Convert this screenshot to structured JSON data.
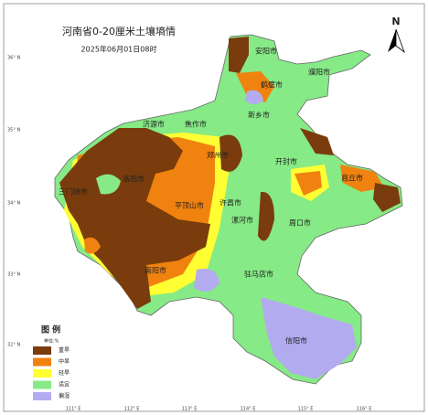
{
  "header": {
    "title": "河南省0-20厘米土壤墒情",
    "subtitle": "2025年06月01日08时"
  },
  "north": "N",
  "lat_labels": [
    "36° N",
    "35° N",
    "34° N",
    "33° N",
    "32° N"
  ],
  "lon_labels": [
    "111° E",
    "112° E",
    "113° E",
    "114° E",
    "115° E",
    "116° E"
  ],
  "cities": [
    "安阳市",
    "濮阳市",
    "鹤壁市",
    "新乡市",
    "济源市",
    "焦作市",
    "郑州市",
    "开封市",
    "商丘市",
    "洛阳市",
    "三门峡市",
    "许昌市",
    "平顶山市",
    "漯河市",
    "周口市",
    "南阳市",
    "驻马店市",
    "信阳市"
  ],
  "legend": {
    "title": "图 例",
    "unit": "单位:%",
    "items": [
      {
        "label": "重旱",
        "color": "#7a3c0c"
      },
      {
        "label": "中旱",
        "color": "#f0820f"
      },
      {
        "label": "轻旱",
        "color": "#ffff33"
      },
      {
        "label": "适宜",
        "color": "#86ea86"
      },
      {
        "label": "偏湿",
        "color": "#b3abef"
      }
    ]
  }
}
